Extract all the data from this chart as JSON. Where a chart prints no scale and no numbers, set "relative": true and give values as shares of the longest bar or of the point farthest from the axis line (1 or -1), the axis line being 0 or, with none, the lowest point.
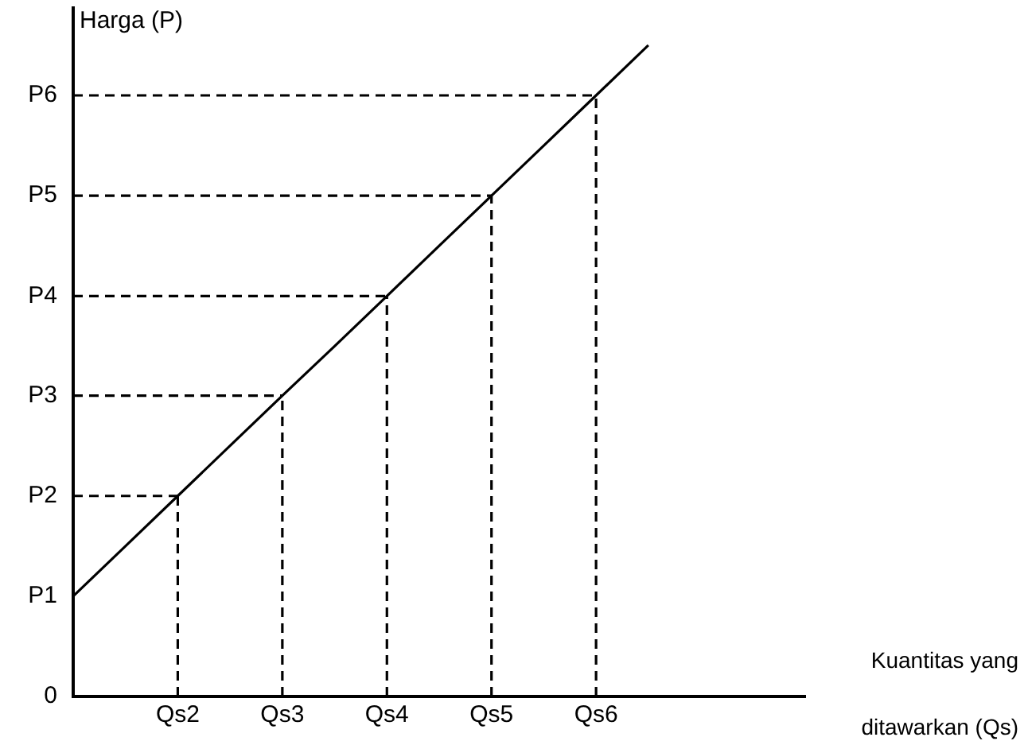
{
  "chart_data": {
    "type": "line",
    "relative": true,
    "xlabel": "Kuantitas yang ditawarkan (Qs)",
    "ylabel": "Harga (P)",
    "categories": [
      null,
      null,
      "Qs2",
      null,
      "Qs3",
      null,
      "Qs4",
      null,
      "Qs5",
      null,
      "Qs6",
      null,
      null,
      null,
      null
    ],
    "grid": false,
    "legend": false,
    "marker": "none",
    "annotations": [
      "0",
      "P1",
      "P2",
      "P3",
      "P4",
      "P5",
      "P6"
    ],
    "series": [
      {
        "color": "#000000",
        "line_style": "solid",
        "values": [
          0.154,
          0.231,
          0.308,
          0.385,
          0.462,
          0.538,
          0.615,
          0.692,
          0.769,
          0.846,
          0.923,
          1,
          null,
          null,
          null
        ]
      },
      {
        "color": "#000000",
        "line_style": "dashed",
        "values": [
          0.308,
          0.308,
          0.308,
          null,
          null,
          null,
          null,
          null,
          null,
          null,
          null,
          null,
          null,
          null,
          null
        ]
      },
      {
        "color": "#000000",
        "line_style": "dashed",
        "x": [
          "Qs2",
          "Qs2"
        ],
        "values": [
          0,
          0.308
        ]
      },
      {
        "color": "#000000",
        "line_style": "dashed",
        "values": [
          0.462,
          0.462,
          0.462,
          0.462,
          0.462,
          null,
          null,
          null,
          null,
          null,
          null,
          null,
          null,
          null,
          null
        ]
      },
      {
        "color": "#000000",
        "line_style": "dashed",
        "x": [
          "Qs3",
          "Qs3"
        ],
        "values": [
          0,
          0.462
        ]
      },
      {
        "color": "#000000",
        "line_style": "dashed",
        "values": [
          0.615,
          0.615,
          0.615,
          0.615,
          0.615,
          0.615,
          0.615,
          null,
          null,
          null,
          null,
          null,
          null,
          null,
          null
        ]
      },
      {
        "color": "#000000",
        "line_style": "dashed",
        "x": [
          "Qs4",
          "Qs4"
        ],
        "values": [
          0,
          0.615
        ]
      },
      {
        "color": "#000000",
        "line_style": "dashed",
        "values": [
          0.769,
          0.769,
          0.769,
          0.769,
          0.769,
          0.769,
          0.769,
          0.769,
          0.769,
          null,
          null,
          null,
          null,
          null,
          null
        ]
      },
      {
        "color": "#000000",
        "line_style": "dashed",
        "x": [
          "Qs5",
          "Qs5"
        ],
        "values": [
          0,
          0.769
        ]
      },
      {
        "color": "#000000",
        "line_style": "dashed",
        "values": [
          0.923,
          0.923,
          0.923,
          0.923,
          0.923,
          0.923,
          0.923,
          0.923,
          0.923,
          0.923,
          0.923,
          null,
          null,
          null,
          null
        ]
      },
      {
        "color": "#000000",
        "line_style": "dashed",
        "x": [
          "Qs6",
          "Qs6"
        ],
        "values": [
          0,
          0.923
        ]
      }
    ]
  }
}
